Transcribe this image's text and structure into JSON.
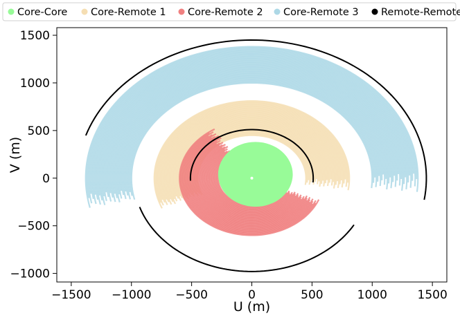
{
  "chart_data": {
    "type": "scatter",
    "title": "",
    "xlabel": "U (m)",
    "ylabel": "V (m)",
    "xlim": [
      -1620,
      1620
    ],
    "ylim": [
      -1090,
      1580
    ],
    "xticks": [
      -1500,
      -1000,
      -500,
      0,
      500,
      1000,
      1500
    ],
    "yticks": [
      -1000,
      -500,
      0,
      500,
      1000,
      1500
    ],
    "xtick_labels": [
      "−1500",
      "−1000",
      "−500",
      "0",
      "500",
      "1000",
      "1500"
    ],
    "ytick_labels": [
      "−1000",
      "−500",
      "0",
      "500",
      "1000",
      "1500"
    ],
    "grid": false,
    "legend": {
      "placement": "top",
      "entries": [
        {
          "name": "Core-Core",
          "color": "#98fb98"
        },
        {
          "name": "Core-Remote 1",
          "color": "#f5deb3"
        },
        {
          "name": "Core-Remote 2",
          "color": "#f08080"
        },
        {
          "name": "Core-Remote 3",
          "color": "#add8e6"
        },
        {
          "name": "Remote-Remote",
          "color": "#000000"
        }
      ]
    },
    "series": [
      {
        "name": "Core-Core",
        "color": "#98fb98",
        "shape": "disk",
        "center": [
          30,
          40
        ],
        "radius_x": 310,
        "radius_y": 340
      },
      {
        "name": "Core-Remote 1",
        "color": "#f5deb3",
        "shape": "arc-band",
        "center": [
          0,
          0
        ],
        "r_inner": 450,
        "r_outer": 810,
        "theta_start_deg": -5,
        "theta_end_deg": 200
      },
      {
        "name": "Core-Remote 2",
        "color": "#f08080",
        "shape": "arc-band",
        "center": [
          0,
          0
        ],
        "r_inner": 280,
        "r_outer": 600,
        "theta_start_deg": 125,
        "theta_end_deg": 335
      },
      {
        "name": "Core-Remote 3",
        "color": "#add8e6",
        "shape": "arc-band",
        "center": [
          0,
          0
        ],
        "r_inner": 1000,
        "r_outer": 1380,
        "theta_start_deg": -2,
        "theta_end_deg": 190
      },
      {
        "name": "Remote-Remote",
        "color": "#000000",
        "shape": "arcs",
        "arcs": [
          {
            "center": [
              0,
              0
            ],
            "radius": 1450,
            "theta_start_deg": -9,
            "theta_end_deg": 162
          },
          {
            "center": [
              0,
              0
            ],
            "radius": 980,
            "theta_start_deg": 198,
            "theta_end_deg": 330
          },
          {
            "center": [
              0,
              0
            ],
            "radius": 510,
            "theta_start_deg": -5,
            "theta_end_deg": 183
          }
        ]
      }
    ]
  }
}
